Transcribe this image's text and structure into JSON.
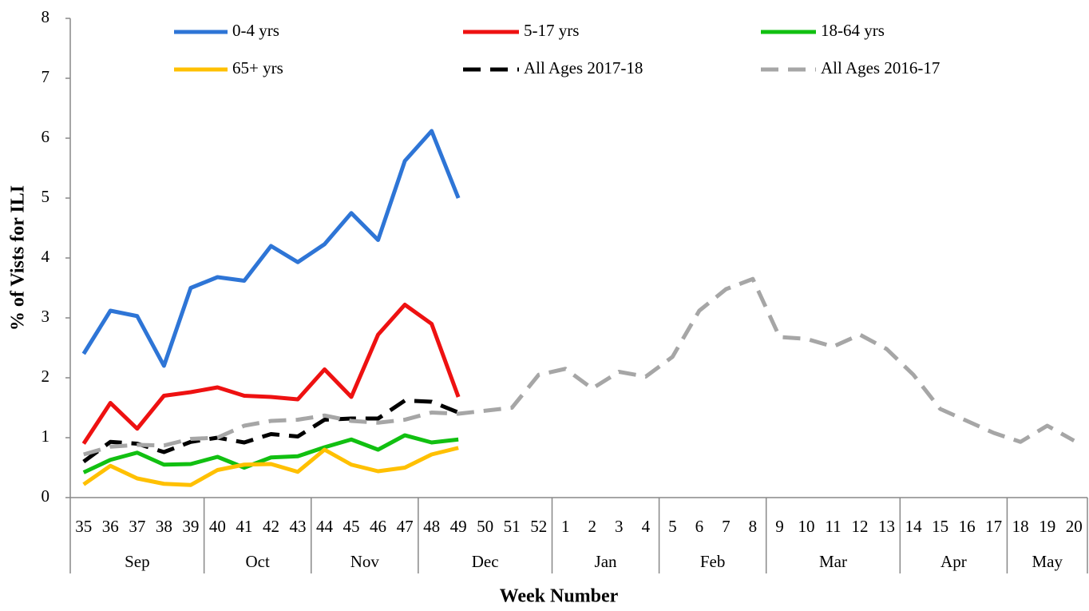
{
  "chart_data": {
    "type": "line",
    "y_label": "% of Vists for ILI",
    "x_label": "Week Number",
    "categories": [
      "35",
      "36",
      "37",
      "38",
      "39",
      "40",
      "41",
      "42",
      "43",
      "44",
      "45",
      "46",
      "47",
      "48",
      "49",
      "50",
      "51",
      "52",
      "1",
      "2",
      "3",
      "4",
      "5",
      "6",
      "7",
      "8",
      "9",
      "10",
      "11",
      "12",
      "13",
      "14",
      "15",
      "16",
      "17",
      "18",
      "19",
      "20"
    ],
    "month_labels": [
      "Sep",
      null,
      null,
      null,
      null,
      "Oct",
      null,
      null,
      null,
      "Nov",
      null,
      null,
      null,
      "Dec",
      null,
      null,
      null,
      null,
      "Jan",
      null,
      null,
      null,
      "Feb",
      null,
      null,
      null,
      "Mar",
      null,
      null,
      null,
      null,
      "Apr",
      null,
      null,
      null,
      "May",
      null,
      null
    ],
    "ylim": [
      0,
      8
    ],
    "yticks": [
      0,
      1,
      2,
      3,
      4,
      5,
      6,
      7,
      8
    ],
    "series": [
      {
        "name": "0-4 yrs",
        "color": "#2e75d6",
        "dashed": false,
        "values": [
          2.4,
          3.12,
          3.03,
          2.2,
          3.5,
          3.68,
          3.62,
          4.2,
          3.93,
          4.23,
          4.75,
          4.3,
          5.62,
          6.12,
          5.0,
          null,
          null,
          null,
          null,
          null,
          null,
          null,
          null,
          null,
          null,
          null,
          null,
          null,
          null,
          null,
          null,
          null,
          null,
          null,
          null,
          null,
          null,
          null
        ]
      },
      {
        "name": "5-17 yrs",
        "color": "#ee1111",
        "dashed": false,
        "values": [
          0.9,
          1.58,
          1.15,
          1.7,
          1.76,
          1.84,
          1.7,
          1.68,
          1.64,
          2.14,
          1.68,
          2.72,
          3.22,
          2.9,
          1.68,
          null,
          null,
          null,
          null,
          null,
          null,
          null,
          null,
          null,
          null,
          null,
          null,
          null,
          null,
          null,
          null,
          null,
          null,
          null,
          null,
          null,
          null,
          null
        ]
      },
      {
        "name": "18-64 yrs",
        "color": "#11c011",
        "dashed": false,
        "values": [
          0.42,
          0.63,
          0.75,
          0.55,
          0.56,
          0.68,
          0.5,
          0.67,
          0.69,
          0.84,
          0.97,
          0.8,
          1.04,
          0.92,
          0.97,
          null,
          null,
          null,
          null,
          null,
          null,
          null,
          null,
          null,
          null,
          null,
          null,
          null,
          null,
          null,
          null,
          null,
          null,
          null,
          null,
          null,
          null,
          null
        ]
      },
      {
        "name": "65+ yrs",
        "color": "#ffc000",
        "dashed": false,
        "values": [
          0.22,
          0.53,
          0.32,
          0.23,
          0.21,
          0.46,
          0.55,
          0.56,
          0.43,
          0.8,
          0.55,
          0.44,
          0.5,
          0.72,
          0.83,
          null,
          null,
          null,
          null,
          null,
          null,
          null,
          null,
          null,
          null,
          null,
          null,
          null,
          null,
          null,
          null,
          null,
          null,
          null,
          null,
          null,
          null,
          null
        ]
      },
      {
        "name": "All Ages 2017-18",
        "color": "#000000",
        "dashed": true,
        "values": [
          0.6,
          0.93,
          0.9,
          0.76,
          0.93,
          1.0,
          0.92,
          1.06,
          1.02,
          1.3,
          1.32,
          1.32,
          1.62,
          1.6,
          1.42,
          null,
          null,
          null,
          null,
          null,
          null,
          null,
          null,
          null,
          null,
          null,
          null,
          null,
          null,
          null,
          null,
          null,
          null,
          null,
          null,
          null,
          null,
          null
        ]
      },
      {
        "name": "All Ages 2016-17",
        "color": "#a6a6a6",
        "dashed": true,
        "values": [
          0.72,
          0.85,
          0.88,
          0.87,
          0.98,
          1.0,
          1.2,
          1.28,
          1.3,
          1.37,
          1.28,
          1.25,
          1.3,
          1.42,
          1.4,
          1.45,
          1.5,
          2.05,
          2.15,
          1.82,
          2.1,
          2.02,
          2.35,
          3.12,
          3.48,
          3.65,
          2.68,
          2.65,
          2.52,
          2.72,
          2.48,
          2.05,
          1.48,
          1.28,
          1.08,
          0.93,
          1.2,
          0.95
        ]
      }
    ]
  }
}
